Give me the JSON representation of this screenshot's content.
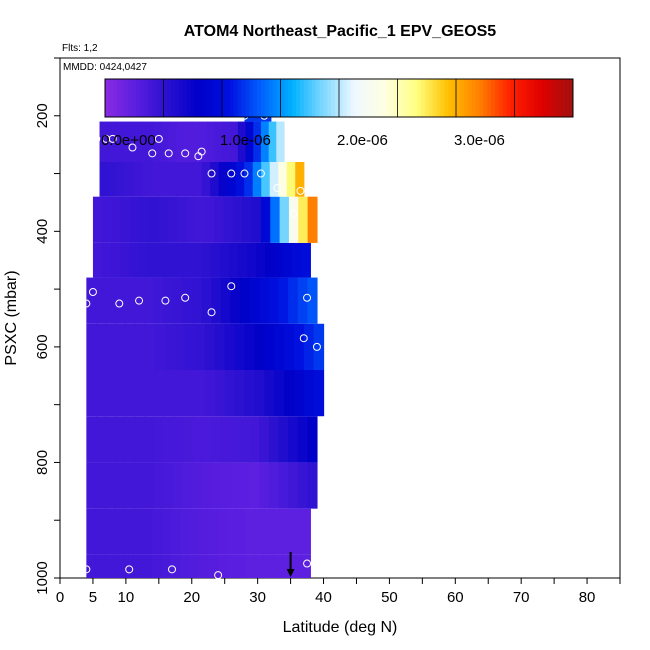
{
  "chart_data": {
    "type": "heatmap",
    "title": "ATOM4 Northeast_Pacific_1 EPV_GEOS5",
    "flights_label": "Flts: 1,2",
    "dates_label": "MMDD: 0424,0427",
    "xlabel": "Latitude (deg N)",
    "ylabel": "PSXC (mbar)",
    "xlim": [
      0,
      85
    ],
    "ylim": [
      1000,
      100
    ],
    "y_reversed": true,
    "x_ticks": [
      0,
      5,
      10,
      20,
      30,
      40,
      50,
      60,
      70,
      80
    ],
    "x_tick_labels": [
      "0",
      "5",
      "10",
      "20",
      "30",
      "40",
      "50",
      "60",
      "70",
      "80"
    ],
    "y_ticks": [
      200,
      400,
      600,
      800,
      1000
    ],
    "y_tick_labels": [
      "200",
      "400",
      "600",
      "800",
      "1000"
    ],
    "colorbar": {
      "min": -2e-07,
      "max": 3.8e-06,
      "tick_values": [
        0,
        1e-06,
        2e-06,
        3e-06
      ],
      "tick_labels": [
        "0.0e+00",
        "1.0e-06",
        "2.0e-06",
        "3.0e-06"
      ],
      "colors": [
        "#8a2be2",
        "#5a1ee0",
        "#2a10d0",
        "#0000c8",
        "#0010e0",
        "#0060ff",
        "#00b0ff",
        "#80d8ff",
        "#f0f8ff",
        "#ffffe0",
        "#ffff80",
        "#ffc000",
        "#ff8000",
        "#ff2000",
        "#e00000",
        "#a01010"
      ]
    },
    "columns": [
      {
        "lat": [
          4,
          38
        ],
        "p": [
          960,
          1000
        ],
        "v": [
          2e-07,
          2e-07,
          1e-07,
          5e-08,
          5e-08
        ]
      },
      {
        "lat": [
          4,
          38
        ],
        "p": [
          880,
          960
        ],
        "v": [
          2e-07,
          2e-07,
          1e-07,
          5e-08,
          5e-08
        ]
      },
      {
        "lat": [
          4,
          39
        ],
        "p": [
          800,
          880
        ],
        "v": [
          2e-07,
          2e-07,
          1e-07,
          5e-08,
          3e-07
        ]
      },
      {
        "lat": [
          4,
          39
        ],
        "p": [
          720,
          800
        ],
        "v": [
          2e-07,
          2e-07,
          1.5e-07,
          2e-07,
          6e-07
        ]
      },
      {
        "lat": [
          4,
          40
        ],
        "p": [
          640,
          720
        ],
        "v": [
          2e-07,
          2e-07,
          2e-07,
          4e-07,
          8e-07
        ]
      },
      {
        "lat": [
          4,
          40
        ],
        "p": [
          560,
          640
        ],
        "v": [
          2e-07,
          2e-07,
          3e-07,
          6e-07,
          1e-06
        ]
      },
      {
        "lat": [
          4,
          39
        ],
        "p": [
          480,
          560
        ],
        "v": [
          2e-07,
          2e-07,
          3e-07,
          7e-07,
          1.1e-06
        ]
      },
      {
        "lat": [
          5,
          38
        ],
        "p": [
          420,
          480
        ],
        "v": [
          2e-07,
          3e-07,
          3e-07,
          5e-07,
          8e-07
        ]
      },
      {
        "lat": [
          5,
          39
        ],
        "p": [
          340,
          420
        ],
        "v": [
          2e-07,
          3e-07,
          2e-07,
          4e-07,
          3e-06
        ]
      },
      {
        "lat": [
          6,
          37
        ],
        "p": [
          280,
          340
        ],
        "v": [
          3e-07,
          2e-07,
          2e-07,
          1e-06,
          2.8e-06
        ]
      },
      {
        "lat": [
          6,
          34
        ],
        "p": [
          210,
          280
        ],
        "v": [
          2e-07,
          2e-07,
          1e-07,
          2e-07,
          1.8e-06
        ]
      },
      {
        "lat": [
          28,
          32
        ],
        "p": [
          180,
          210
        ],
        "v": [
          1e-06,
          1e-06,
          1e-06,
          1e-06,
          1e-06
        ]
      }
    ],
    "flight_points": [
      {
        "lat": 4,
        "p": 985
      },
      {
        "lat": 10.5,
        "p": 985
      },
      {
        "lat": 17,
        "p": 985
      },
      {
        "lat": 24,
        "p": 995
      },
      {
        "lat": 37.5,
        "p": 975
      },
      {
        "lat": 4,
        "p": 525
      },
      {
        "lat": 5,
        "p": 505
      },
      {
        "lat": 9,
        "p": 525
      },
      {
        "lat": 12,
        "p": 520
      },
      {
        "lat": 16,
        "p": 520
      },
      {
        "lat": 19,
        "p": 515
      },
      {
        "lat": 23,
        "p": 540
      },
      {
        "lat": 26,
        "p": 495
      },
      {
        "lat": 37.5,
        "p": 515
      },
      {
        "lat": 37,
        "p": 585
      },
      {
        "lat": 39,
        "p": 600
      },
      {
        "lat": 5.5,
        "p": 240
      },
      {
        "lat": 7,
        "p": 240
      },
      {
        "lat": 8,
        "p": 240
      },
      {
        "lat": 11,
        "p": 255
      },
      {
        "lat": 14,
        "p": 265
      },
      {
        "lat": 15,
        "p": 240
      },
      {
        "lat": 16.5,
        "p": 265
      },
      {
        "lat": 19,
        "p": 265
      },
      {
        "lat": 21,
        "p": 270
      },
      {
        "lat": 21.5,
        "p": 262
      },
      {
        "lat": 23,
        "p": 300
      },
      {
        "lat": 26,
        "p": 300
      },
      {
        "lat": 28,
        "p": 300
      },
      {
        "lat": 30.5,
        "p": 300
      },
      {
        "lat": 33,
        "p": 325
      },
      {
        "lat": 35.5,
        "p": 370
      },
      {
        "lat": 36.5,
        "p": 330
      },
      {
        "lat": 38.5,
        "p": 330
      },
      {
        "lat": 28,
        "p": 200
      },
      {
        "lat": 31,
        "p": 200
      }
    ],
    "arrow_lat": 35
  }
}
